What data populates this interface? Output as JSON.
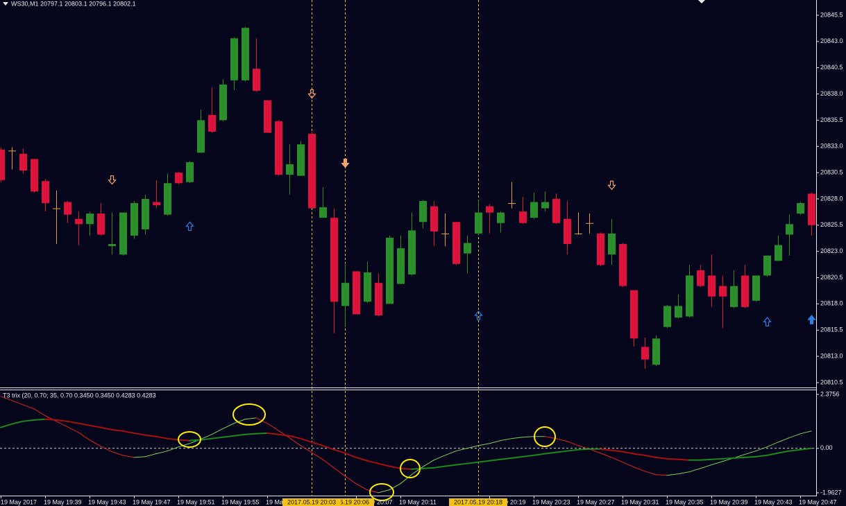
{
  "chart_data": [
    {
      "type": "candlestick",
      "title": "WS30,M1  20797.1 20803.1 20796.1 20802.1",
      "categories": [
        "19 May 2017",
        null,
        null,
        null,
        "19 May 19:39",
        null,
        null,
        null,
        "19 May 19:43",
        null,
        null,
        null,
        "19 May 19:47",
        null,
        null,
        null,
        "19 May 19:51",
        null,
        null,
        null,
        "19 May 19:55",
        null,
        null,
        null,
        "19 May 19:59",
        null,
        null,
        null,
        null,
        null,
        null,
        null,
        "19 May 20:07",
        null,
        null,
        null,
        "19 May 20:11",
        null,
        null,
        null,
        null,
        null,
        null,
        null,
        "19 May 20:19",
        null,
        null,
        null,
        "19 May 20:23",
        null,
        null,
        null,
        "19 May 20:27",
        null,
        null,
        null,
        "19 May 20:31",
        null,
        null,
        null,
        "19 May 20:35",
        null,
        null,
        null,
        "19 May 20:39",
        null,
        null,
        null,
        "19 May 20:43",
        null,
        null,
        null,
        "19 May 20:47",
        null
      ],
      "open": [
        20832.7,
        20832.6,
        20832.3,
        20831.8,
        20829.7,
        20827.1,
        20827.7,
        20826.1,
        20825.6,
        20826.6,
        20823.5,
        20822.7,
        20824.5,
        20825.1,
        20827.7,
        20826.5,
        20830.5,
        20829.6,
        20832.4,
        20836.0,
        20835.5,
        20839.3,
        20839.3,
        20840.4,
        20837.4,
        20835.4,
        20830.3,
        20830.2,
        20834.2,
        20826.2,
        20826.2,
        20817.8,
        20821.1,
        20818.2,
        20820.0,
        20818.0,
        20819.9,
        20820.8,
        20825.8,
        20827.3,
        20824.7,
        20825.8,
        20822.8,
        20824.7,
        20827.3,
        20825.7,
        20827.6,
        20826.8,
        20826.2,
        20827.1,
        20828.0,
        20826.1,
        20824.7,
        20825.7,
        20824.7,
        20822.7,
        20823.7,
        20819.3,
        20813.9,
        20812.2,
        20815.8,
        20816.7,
        20816.8,
        20821.2,
        20820.7,
        20819.7,
        20817.7,
        20820.7,
        20818.3,
        20820.7,
        20822.1,
        20824.6,
        20826.6,
        20828.5
      ],
      "high": [
        20832.9,
        20832.9,
        20832.8,
        20831.8,
        20829.9,
        20828.8,
        20827.8,
        20826.8,
        20826.8,
        20827.6,
        20826.7,
        20826.7,
        20827.8,
        20828.4,
        20829.8,
        20830.4,
        20830.6,
        20831.6,
        20836.5,
        20838.6,
        20839.4,
        20843.4,
        20844.4,
        20843.3,
        20837.4,
        20835.5,
        20833.2,
        20833.5,
        20834.4,
        20829.1,
        20827.1,
        20821.9,
        20821.1,
        20822.0,
        20820.9,
        20824.5,
        20824.5,
        20826.7,
        20827.9,
        20827.8,
        20826.6,
        20825.8,
        20824.5,
        20827.9,
        20827.5,
        20826.8,
        20829.6,
        20828.2,
        20828.6,
        20828.7,
        20828.5,
        20827.8,
        20826.7,
        20826.6,
        20824.8,
        20826.1,
        20823.8,
        20819.3,
        20814.8,
        20815.0,
        20817.9,
        20818.9,
        20821.7,
        20821.7,
        20822.7,
        20820.7,
        20821.2,
        20821.7,
        20820.7,
        20822.6,
        20824.5,
        20826.5,
        20827.7,
        20828.6
      ],
      "low": [
        20829.6,
        20830.8,
        20830.4,
        20828.6,
        20826.8,
        20823.7,
        20825.7,
        20823.6,
        20824.5,
        20824.5,
        20822.7,
        20822.6,
        20824.2,
        20824.6,
        20827.1,
        20826.4,
        20829.4,
        20829.5,
        20832.4,
        20834.3,
        20835.4,
        20838.4,
        20839.2,
        20838.2,
        20834.3,
        20830.2,
        20828.4,
        20830.2,
        20827.1,
        20826.2,
        20815.2,
        20815.9,
        20817.0,
        20818.1,
        20816.8,
        20818.0,
        20819.9,
        20820.7,
        20825.2,
        20823.5,
        20823.5,
        20821.7,
        20820.9,
        20824.6,
        20824.7,
        20824.8,
        20827.1,
        20825.6,
        20826.1,
        20826.8,
        20825.6,
        20822.7,
        20824.6,
        20824.7,
        20821.6,
        20821.7,
        20819.6,
        20813.9,
        20811.8,
        20812.1,
        20815.7,
        20816.6,
        20816.7,
        20819.6,
        20817.7,
        20815.7,
        20817.6,
        20817.6,
        20818.2,
        20820.6,
        20822.1,
        20822.6,
        20826.5,
        20824.5
      ],
      "close": [
        20829.8,
        20832.6,
        20830.7,
        20828.7,
        20827.6,
        20827.1,
        20826.5,
        20825.6,
        20826.6,
        20824.6,
        20823.7,
        20826.7,
        20827.6,
        20828.0,
        20827.4,
        20829.5,
        20829.5,
        20831.5,
        20835.5,
        20834.4,
        20838.9,
        20843.3,
        20844.3,
        20838.3,
        20834.3,
        20830.3,
        20831.3,
        20833.2,
        20827.1,
        20827.2,
        20818.2,
        20820.0,
        20817.0,
        20821.0,
        20816.9,
        20824.3,
        20823.3,
        20825.0,
        20827.8,
        20824.9,
        20824.7,
        20821.8,
        20823.8,
        20826.7,
        20826.7,
        20826.7,
        20827.6,
        20825.7,
        20827.7,
        20827.7,
        20825.7,
        20823.7,
        20824.7,
        20825.7,
        20821.7,
        20824.7,
        20819.7,
        20814.7,
        20812.7,
        20814.7,
        20817.8,
        20817.8,
        20820.7,
        20819.7,
        20818.7,
        20818.7,
        20819.7,
        20817.7,
        20820.7,
        20822.6,
        20823.6,
        20825.6,
        20827.6,
        20825.5
      ],
      "up_color": "#2a8f2a",
      "down_color": "#dc143c",
      "doji_color": "#e8a040",
      "ylim": [
        20810.1,
        20846.95
      ],
      "yticks": [
        20845.5,
        {
          "value": 20843,
          "label": "20843.0"
        },
        20840.5,
        {
          "value": 20838,
          "label": "20838.0"
        },
        20835.5,
        {
          "value": 20833,
          "label": "20833.0"
        },
        20830.5,
        {
          "value": 20828,
          "label": "20828.0"
        },
        20825.5,
        {
          "value": 20823,
          "label": "20823.0"
        },
        20820.5,
        {
          "value": 20818,
          "label": "20818.0"
        },
        20815.5,
        {
          "value": 20813,
          "label": "20813.0"
        },
        20810.5
      ],
      "down_arrows": [
        {
          "index": 10,
          "value": 20829.8,
          "filled": false
        },
        {
          "index": 28,
          "value": 20838.0,
          "filled": false
        },
        {
          "index": 31,
          "value": 20831.4,
          "filled": true
        },
        {
          "index": 55,
          "value": 20829.3,
          "filled": false
        }
      ],
      "up_arrows": [
        {
          "index": 17,
          "value": 20825.4,
          "filled": false
        },
        {
          "index": 43,
          "value": 20816.9,
          "filled": false
        },
        {
          "index": 69,
          "value": 20816.3,
          "filled": false
        },
        {
          "index": 73,
          "value": 20816.5,
          "filled": true
        }
      ],
      "down_arrow_color": "#f4a070",
      "up_arrow_color": "#2f7fe0",
      "markers": [
        {
          "index": 28,
          "label": "2017.05.19 20:03"
        },
        {
          "index": 31,
          "label": "2017.05.19 20:06"
        },
        {
          "index": 43,
          "label": "2017.05.19 20:18"
        }
      ],
      "marker_color": "#f2c316"
    },
    {
      "type": "line",
      "title": "T3 trix (20, 0.70; 35, 0.70 0.3450 0.3450 0.4283 0.4283",
      "series": [
        {
          "up_color": "#7ccf5a",
          "down_color": "#e82020",
          "width": 1,
          "values": [
            2.29,
            2.11,
            1.92,
            1.74,
            1.44,
            1.19,
            0.95,
            0.7,
            0.37,
            0.09,
            -0.15,
            -0.31,
            -0.4,
            -0.37,
            -0.24,
            -0.12,
            0.06,
            0.21,
            0.4,
            0.61,
            0.86,
            1.1,
            1.28,
            1.34,
            1.1,
            0.79,
            0.46,
            0.12,
            -0.18,
            -0.49,
            -0.86,
            -1.22,
            -1.56,
            -1.83,
            -1.96,
            -1.83,
            -1.56,
            -1.16,
            -0.82,
            -0.52,
            -0.31,
            -0.12,
            0.0,
            0.12,
            0.21,
            0.34,
            0.43,
            0.49,
            0.52,
            0.52,
            0.43,
            0.31,
            0.12,
            -0.03,
            -0.21,
            -0.4,
            -0.61,
            -0.82,
            -1.01,
            -1.16,
            -1.19,
            -1.13,
            -1.04,
            -0.89,
            -0.73,
            -0.58,
            -0.43,
            -0.27,
            -0.12,
            0.06,
            0.27,
            0.46,
            0.64,
            0.76
          ]
        },
        {
          "up_color": "#1a8a1a",
          "down_color": "#a81010",
          "width": 2,
          "values": [
            0.92,
            1.07,
            1.19,
            1.25,
            1.28,
            1.25,
            1.19,
            1.1,
            1.01,
            0.92,
            0.82,
            0.76,
            0.67,
            0.58,
            0.52,
            0.43,
            0.37,
            0.34,
            0.37,
            0.43,
            0.49,
            0.55,
            0.61,
            0.64,
            0.67,
            0.61,
            0.55,
            0.43,
            0.27,
            0.12,
            -0.06,
            -0.21,
            -0.4,
            -0.55,
            -0.67,
            -0.79,
            -0.89,
            -0.92,
            -0.89,
            -0.86,
            -0.79,
            -0.73,
            -0.67,
            -0.61,
            -0.55,
            -0.49,
            -0.43,
            -0.37,
            -0.31,
            -0.24,
            -0.18,
            -0.12,
            -0.06,
            -0.03,
            -0.03,
            -0.09,
            -0.15,
            -0.24,
            -0.31,
            -0.4,
            -0.46,
            -0.49,
            -0.52,
            -0.52,
            -0.49,
            -0.46,
            -0.43,
            -0.4,
            -0.37,
            -0.31,
            -0.21,
            -0.12,
            -0.06,
            0.0
          ]
        }
      ],
      "ylim": [
        -1.9627,
        2.3756
      ],
      "yticks": [
        2.3756,
        {
          "value": 0,
          "label": "0.00"
        },
        -1.9627
      ],
      "hline": 0
    }
  ]
}
